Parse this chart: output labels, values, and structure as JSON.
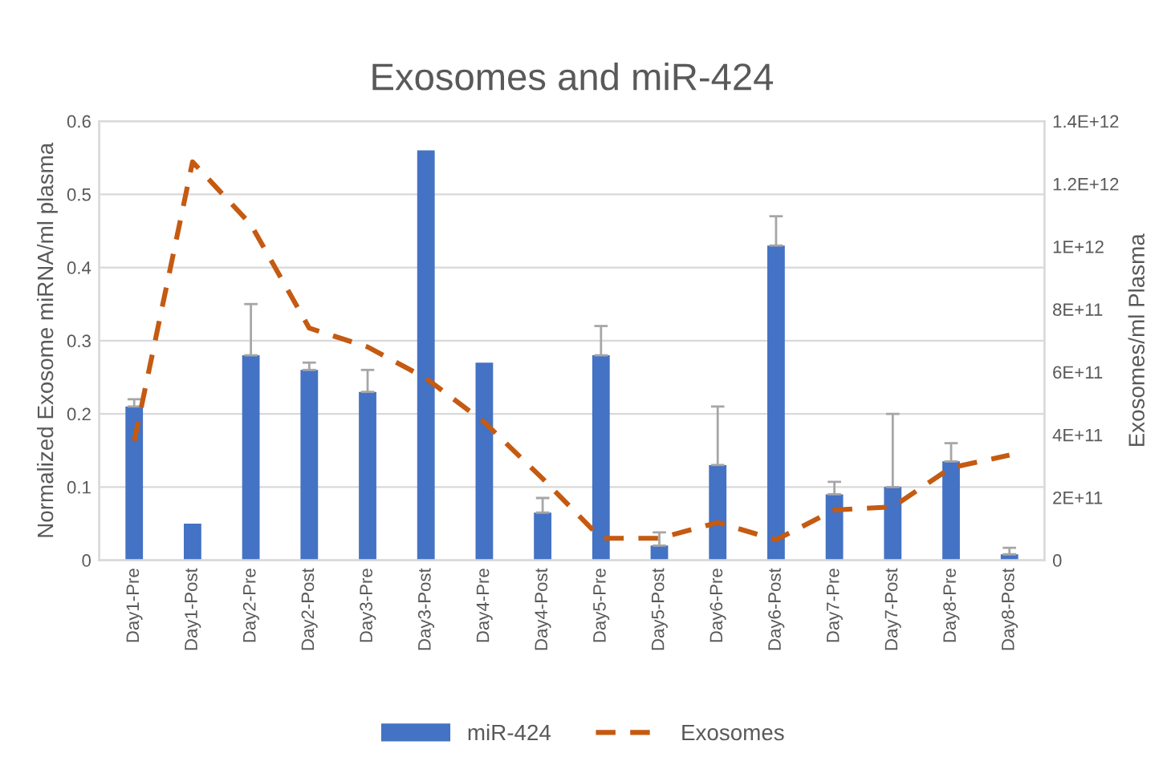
{
  "chart_data": {
    "type": "bar",
    "title": "Exosomes and miR-424",
    "ylabel": "Normalized Exosome miRNA/ml plasma",
    "y2label": "Exosomes/ml Plasma",
    "categories": [
      "Day1-Pre",
      "Day1-Post",
      "Day2-Pre",
      "Day2-Post",
      "Day3-Pre",
      "Day3-Post",
      "Day4-Pre",
      "Day4-Post",
      "Day5-Pre",
      "Day5-Post",
      "Day6-Pre",
      "Day6-Post",
      "Day7-Pre",
      "Day7-Post",
      "Day8-Pre",
      "Day8-Post"
    ],
    "series": [
      {
        "name": "miR-424",
        "color": "#4472c4",
        "values": [
          0.21,
          0.05,
          0.28,
          0.26,
          0.23,
          0.56,
          0.27,
          0.065,
          0.28,
          0.02,
          0.13,
          0.43,
          0.09,
          0.1,
          0.135,
          0.008
        ],
        "errors": [
          [
            0.21,
            0.22
          ],
          null,
          [
            0.28,
            0.35
          ],
          [
            0.26,
            0.27
          ],
          [
            0.23,
            0.26
          ],
          null,
          null,
          [
            0.065,
            0.085
          ],
          [
            0.28,
            0.32
          ],
          [
            0.02,
            0.038
          ],
          [
            0.13,
            0.21
          ],
          [
            0.43,
            0.47
          ],
          [
            0.09,
            0.107
          ],
          [
            0.1,
            0.2
          ],
          [
            0.135,
            0.16
          ],
          [
            0.008,
            0.017
          ]
        ]
      },
      {
        "name": "Exosomes",
        "type": "line",
        "axis": "y2",
        "color": "#c55a11",
        "line_style": "dashed",
        "values": [
          380000000000.0,
          1270000000000.0,
          1070000000000.0,
          740000000000.0,
          680000000000.0,
          580000000000.0,
          440000000000.0,
          260000000000.0,
          70000000000.0,
          70000000000.0,
          120000000000.0,
          65000000000.0,
          160000000000.0,
          170000000000.0,
          295000000000.0,
          335000000000.0
        ]
      }
    ],
    "ylim": [
      0,
      0.6
    ],
    "yticks": [
      0,
      0.1,
      0.2,
      0.3,
      0.4,
      0.5,
      0.6
    ],
    "y2lim": [
      0,
      1400000000000.0
    ],
    "y2ticks": [
      {
        "value": 0,
        "label": "0"
      },
      {
        "value": 200000000000.0,
        "label": "2E+11"
      },
      {
        "value": 400000000000.0,
        "label": "4E+11"
      },
      {
        "value": 600000000000.0,
        "label": "6E+11"
      },
      {
        "value": 800000000000.0,
        "label": "8E+11"
      },
      {
        "value": 1000000000000.0,
        "label": "1E+12"
      },
      {
        "value": 1200000000000.0,
        "label": "1.2E+12"
      },
      {
        "value": 1400000000000.0,
        "label": "1.4E+12"
      }
    ],
    "grid": "y",
    "legend": "bottom"
  }
}
